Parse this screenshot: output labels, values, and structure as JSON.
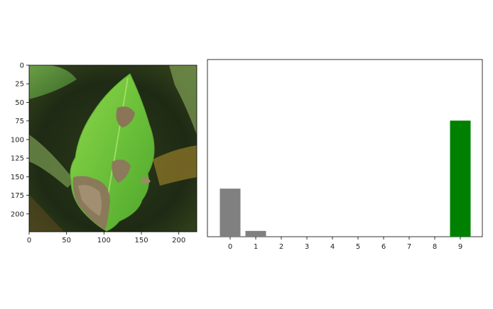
{
  "chart_data": [
    {
      "type": "image",
      "description_label": "leaf image panel",
      "xticks": [
        0,
        50,
        100,
        150,
        200
      ],
      "yticks": [
        0,
        25,
        50,
        75,
        100,
        125,
        150,
        175,
        200
      ],
      "xlim": [
        0,
        224
      ],
      "ylim": [
        224,
        0
      ]
    },
    {
      "type": "bar",
      "categories": [
        "0",
        "1",
        "2",
        "3",
        "4",
        "5",
        "6",
        "7",
        "8",
        "9"
      ],
      "values": [
        0.29,
        0.035,
        0,
        0,
        0,
        0,
        0,
        0,
        0,
        0.7
      ],
      "ylim": [
        0,
        1.0
      ],
      "title": "",
      "xlabel": "",
      "ylabel": "",
      "bar_color": "#808080",
      "highlight_index": 9,
      "highlight_color": "#008000"
    }
  ]
}
